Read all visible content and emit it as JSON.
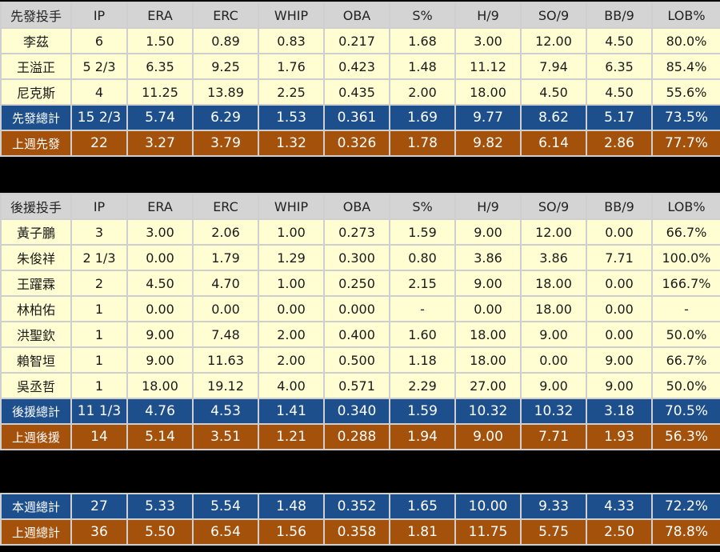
{
  "columns": [
    "IP",
    "ERA",
    "ERC",
    "WHIP",
    "OBA",
    "S%",
    "H/9",
    "SO/9",
    "BB/9",
    "LOB%"
  ],
  "starters": {
    "header": "先發投手",
    "rows": [
      {
        "name": "李茲",
        "vals": [
          "6",
          "1.50",
          "0.89",
          "0.83",
          "0.217",
          "1.68",
          "3.00",
          "12.00",
          "4.50",
          "80.0%"
        ]
      },
      {
        "name": "王溢正",
        "vals": [
          "5 2/3",
          "6.35",
          "9.25",
          "1.76",
          "0.423",
          "1.48",
          "11.12",
          "7.94",
          "6.35",
          "85.4%"
        ]
      },
      {
        "name": "尼克斯",
        "vals": [
          "4",
          "11.25",
          "13.89",
          "2.25",
          "0.435",
          "2.00",
          "18.00",
          "4.50",
          "4.50",
          "55.6%"
        ]
      }
    ],
    "total": {
      "name": "先發總計",
      "vals": [
        "15 2/3",
        "5.74",
        "6.29",
        "1.53",
        "0.361",
        "1.69",
        "9.77",
        "8.62",
        "5.17",
        "73.5%"
      ]
    },
    "last_week": {
      "name": "上週先發",
      "vals": [
        "22",
        "3.27",
        "3.79",
        "1.32",
        "0.326",
        "1.78",
        "9.82",
        "6.14",
        "2.86",
        "77.7%"
      ]
    }
  },
  "relievers": {
    "header": "後援投手",
    "rows": [
      {
        "name": "黃子鵬",
        "vals": [
          "3",
          "3.00",
          "2.06",
          "1.00",
          "0.273",
          "1.59",
          "9.00",
          "12.00",
          "0.00",
          "66.7%"
        ]
      },
      {
        "name": "朱俊祥",
        "vals": [
          "2 1/3",
          "0.00",
          "1.79",
          "1.29",
          "0.300",
          "0.80",
          "3.86",
          "3.86",
          "7.71",
          "100.0%"
        ]
      },
      {
        "name": "王躍霖",
        "vals": [
          "2",
          "4.50",
          "4.70",
          "1.00",
          "0.250",
          "2.15",
          "9.00",
          "18.00",
          "0.00",
          "166.7%"
        ]
      },
      {
        "name": "林柏佑",
        "vals": [
          "1",
          "0.00",
          "0.00",
          "0.00",
          "0.000",
          "-",
          "0.00",
          "18.00",
          "0.00",
          "-"
        ]
      },
      {
        "name": "洪聖欽",
        "vals": [
          "1",
          "9.00",
          "7.48",
          "2.00",
          "0.400",
          "1.60",
          "18.00",
          "9.00",
          "0.00",
          "50.0%"
        ]
      },
      {
        "name": "賴智垣",
        "vals": [
          "1",
          "9.00",
          "11.63",
          "2.00",
          "0.500",
          "1.18",
          "18.00",
          "0.00",
          "9.00",
          "66.7%"
        ]
      },
      {
        "name": "吳丞哲",
        "vals": [
          "1",
          "18.00",
          "19.12",
          "4.00",
          "0.571",
          "2.29",
          "27.00",
          "9.00",
          "9.00",
          "50.0%"
        ]
      }
    ],
    "total": {
      "name": "後援總計",
      "vals": [
        "11 1/3",
        "4.76",
        "4.53",
        "1.41",
        "0.340",
        "1.59",
        "10.32",
        "10.32",
        "3.18",
        "70.5%"
      ]
    },
    "last_week": {
      "name": "上週後援",
      "vals": [
        "14",
        "5.14",
        "3.51",
        "1.21",
        "0.288",
        "1.94",
        "9.00",
        "7.71",
        "1.93",
        "56.3%"
      ]
    }
  },
  "summary": {
    "this_week": {
      "name": "本週總計",
      "vals": [
        "27",
        "5.33",
        "5.54",
        "1.48",
        "0.352",
        "1.65",
        "10.00",
        "9.33",
        "4.33",
        "72.2%"
      ]
    },
    "last_week": {
      "name": "上週總計",
      "vals": [
        "36",
        "5.50",
        "6.54",
        "1.56",
        "0.358",
        "1.81",
        "11.75",
        "5.75",
        "2.50",
        "78.8%"
      ]
    }
  },
  "colors": {
    "header": "#d4d4d4",
    "row": "#fefed2",
    "total": "#1c4f8c",
    "last_week": "#a3510b"
  }
}
